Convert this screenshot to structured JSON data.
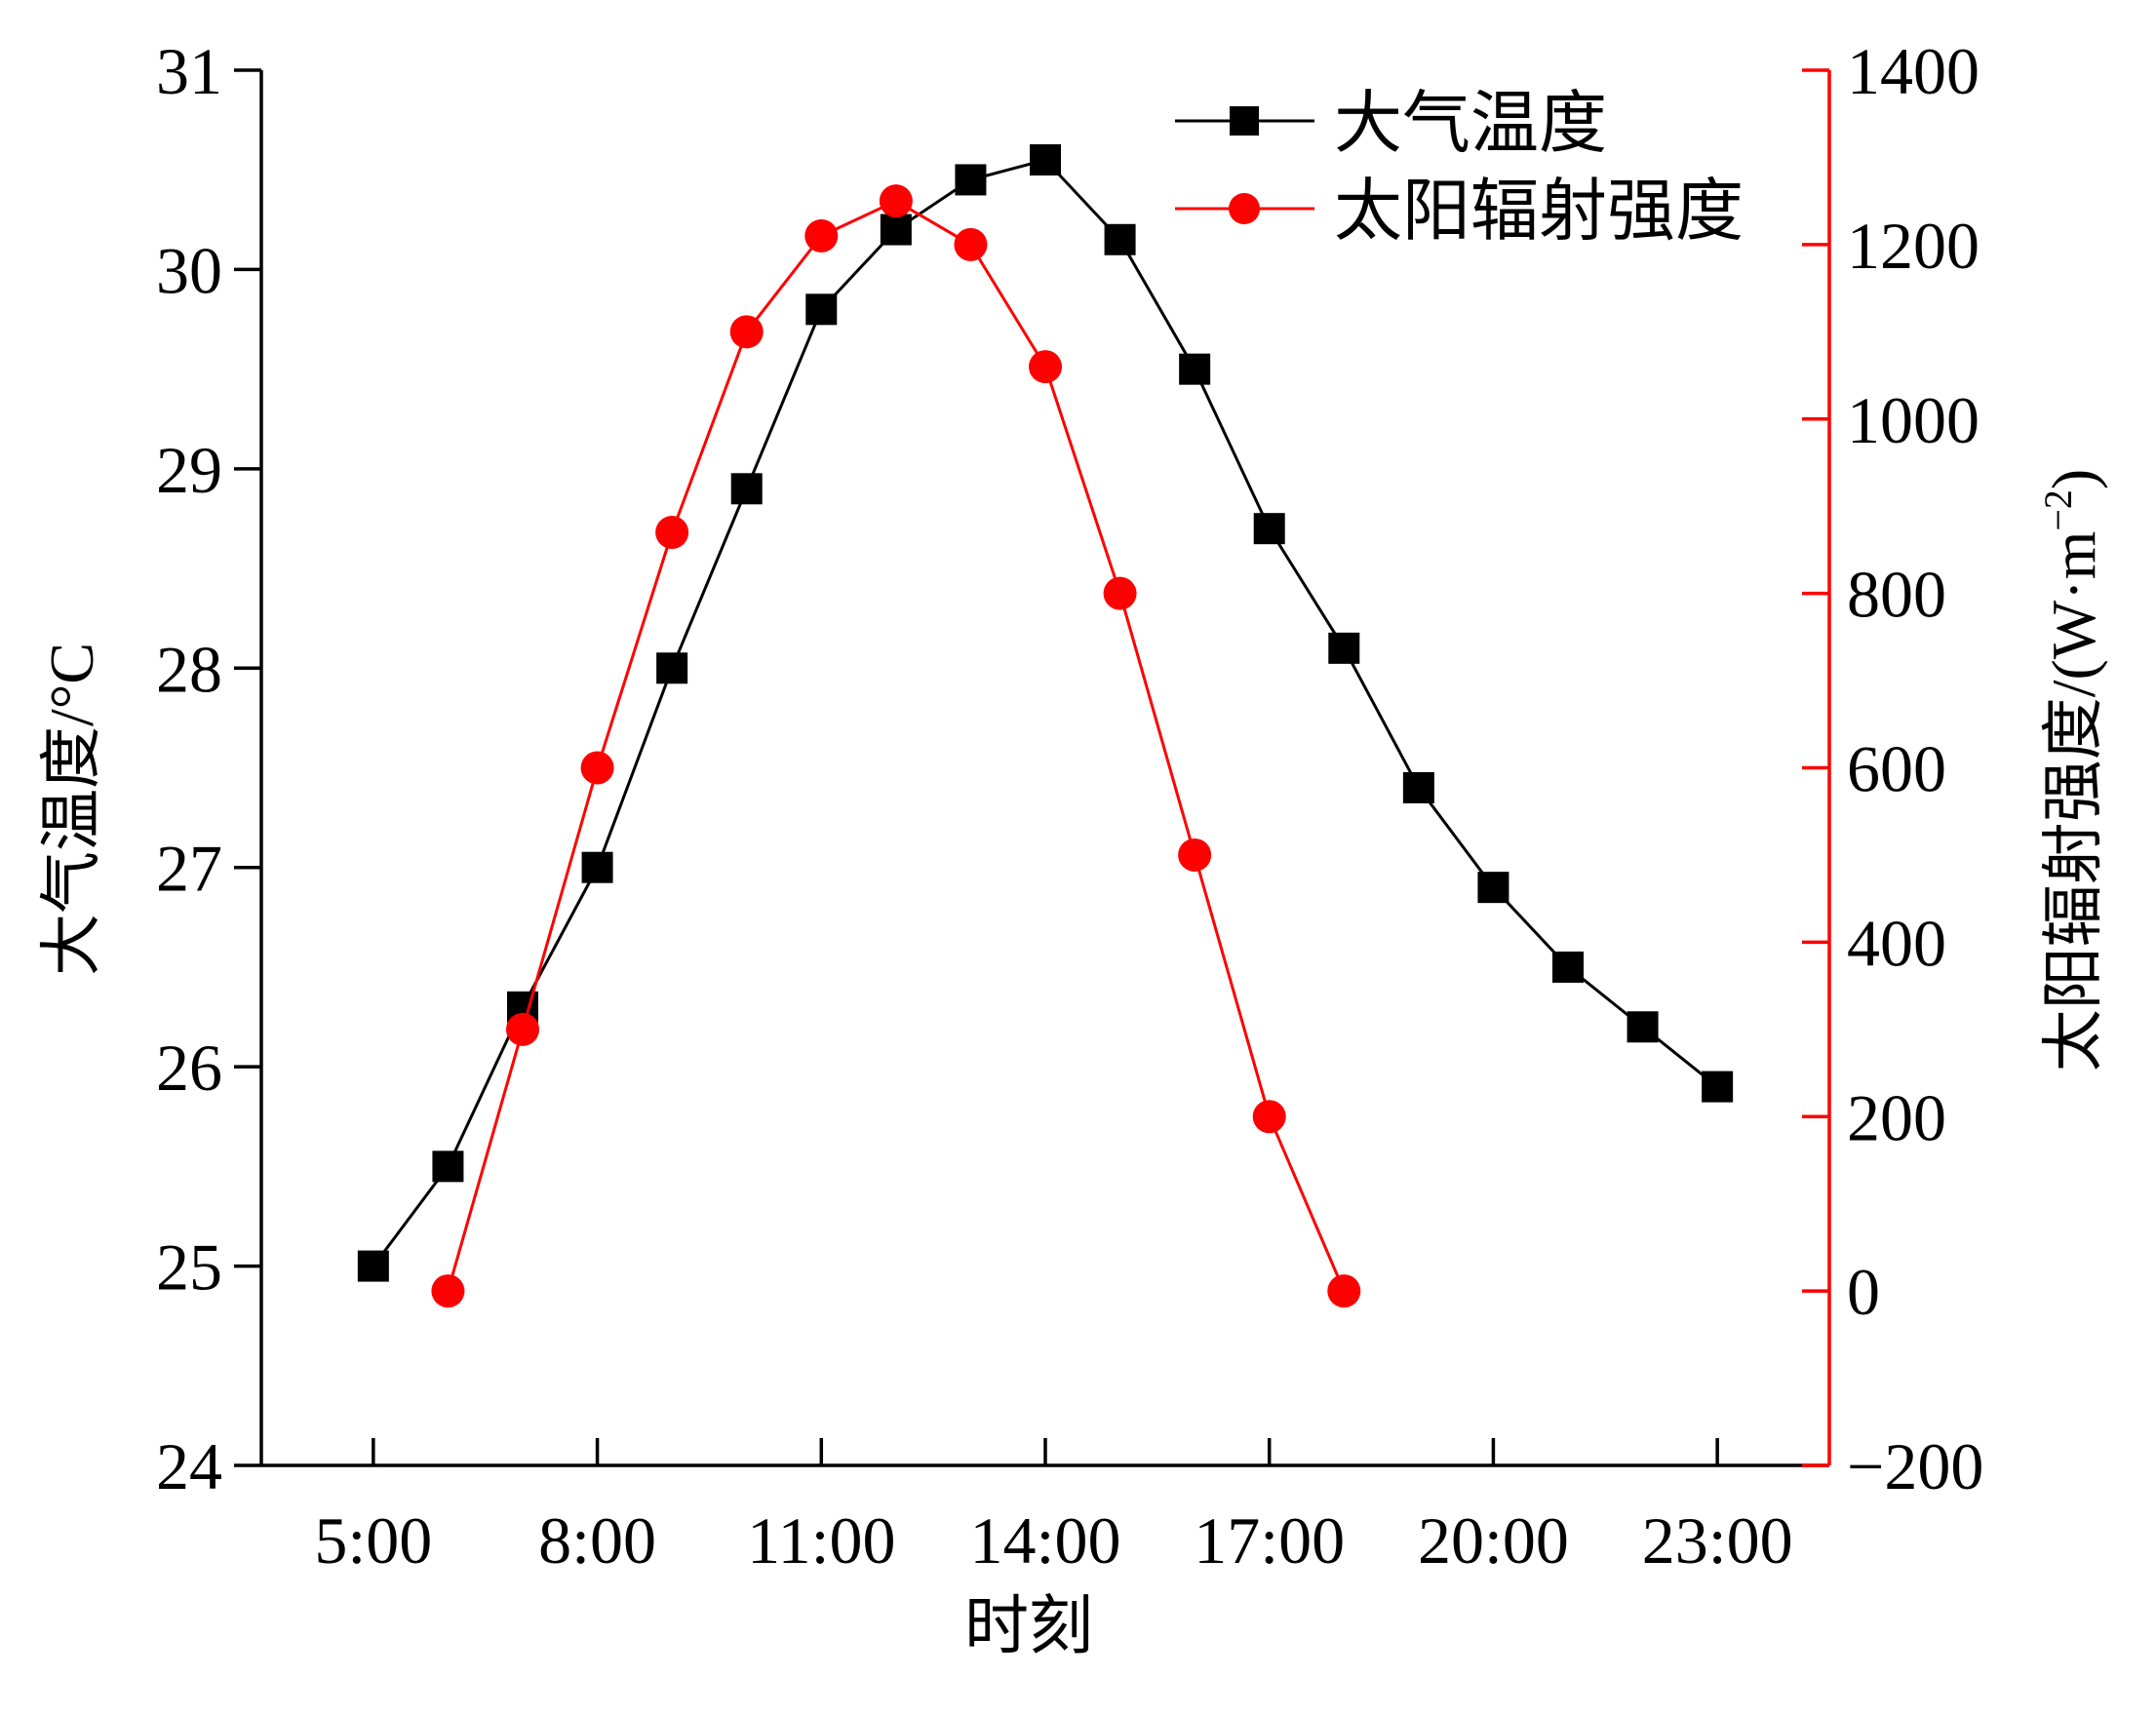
{
  "chart_data": {
    "type": "line",
    "x_tick_labels": [
      "5:00",
      "8:00",
      "11:00",
      "14:00",
      "17:00",
      "20:00",
      "23:00"
    ],
    "x_tick_hours": [
      5,
      8,
      11,
      14,
      17,
      20,
      23
    ],
    "xlim": [
      3.5,
      24.5
    ],
    "xlabel": "时刻",
    "y_left": {
      "label": "大气温度/°C",
      "lim": [
        24,
        31
      ],
      "ticks": [
        24,
        25,
        26,
        27,
        28,
        29,
        30,
        31
      ],
      "color": "#000000"
    },
    "y_right": {
      "label": "太阳辐射强度/(W·m",
      "label_sup": "−2",
      "label_end": ")",
      "lim": [
        -200,
        1400
      ],
      "ticks": [
        -200,
        0,
        200,
        400,
        600,
        800,
        1000,
        1200,
        1400
      ],
      "tick_labels": [
        "−200",
        "0",
        "200",
        "400",
        "600",
        "800",
        "1000",
        "1200",
        "1400"
      ],
      "color": "#ff0000"
    },
    "series": [
      {
        "name": "大气温度",
        "axis": "left",
        "color": "#000000",
        "marker": "square",
        "x": [
          5,
          6,
          7,
          8,
          9,
          10,
          11,
          12,
          13,
          14,
          15,
          16,
          17,
          18,
          19,
          20,
          21,
          22,
          23
        ],
        "y": [
          25.0,
          25.5,
          26.3,
          27.0,
          28.0,
          28.9,
          29.8,
          30.2,
          30.45,
          30.55,
          30.15,
          29.5,
          28.7,
          28.1,
          27.4,
          26.9,
          26.5,
          26.2,
          25.9
        ]
      },
      {
        "name": "太阳辐射强度",
        "axis": "right",
        "color": "#ff0000",
        "marker": "circle",
        "x": [
          6,
          7,
          8,
          9,
          10,
          11,
          12,
          13,
          14,
          15,
          16,
          17,
          18
        ],
        "y": [
          0,
          300,
          600,
          870,
          1100,
          1210,
          1250,
          1200,
          1060,
          800,
          500,
          200,
          0
        ]
      }
    ],
    "legend_position": "top-right",
    "grid": false
  }
}
